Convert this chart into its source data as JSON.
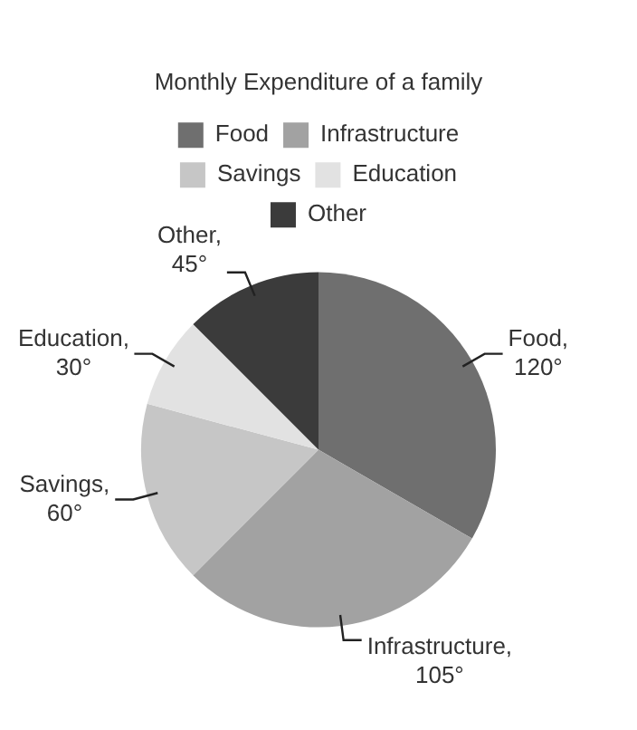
{
  "chart_data": {
    "type": "pie",
    "title": "Monthly Expenditure of a family",
    "categories": [
      "Food",
      "Infrastructure",
      "Savings",
      "Education",
      "Other"
    ],
    "values": [
      120,
      105,
      60,
      30,
      45
    ],
    "value_labels": [
      "Food, 120°",
      "Infrastructure, 105°",
      "Savings, 60°",
      "Education, 30°",
      "Other, 45°"
    ],
    "colors": [
      "#6f6f6f",
      "#a2a2a2",
      "#c6c6c6",
      "#e2e2e2",
      "#3b3b3b"
    ],
    "legend": "top"
  }
}
